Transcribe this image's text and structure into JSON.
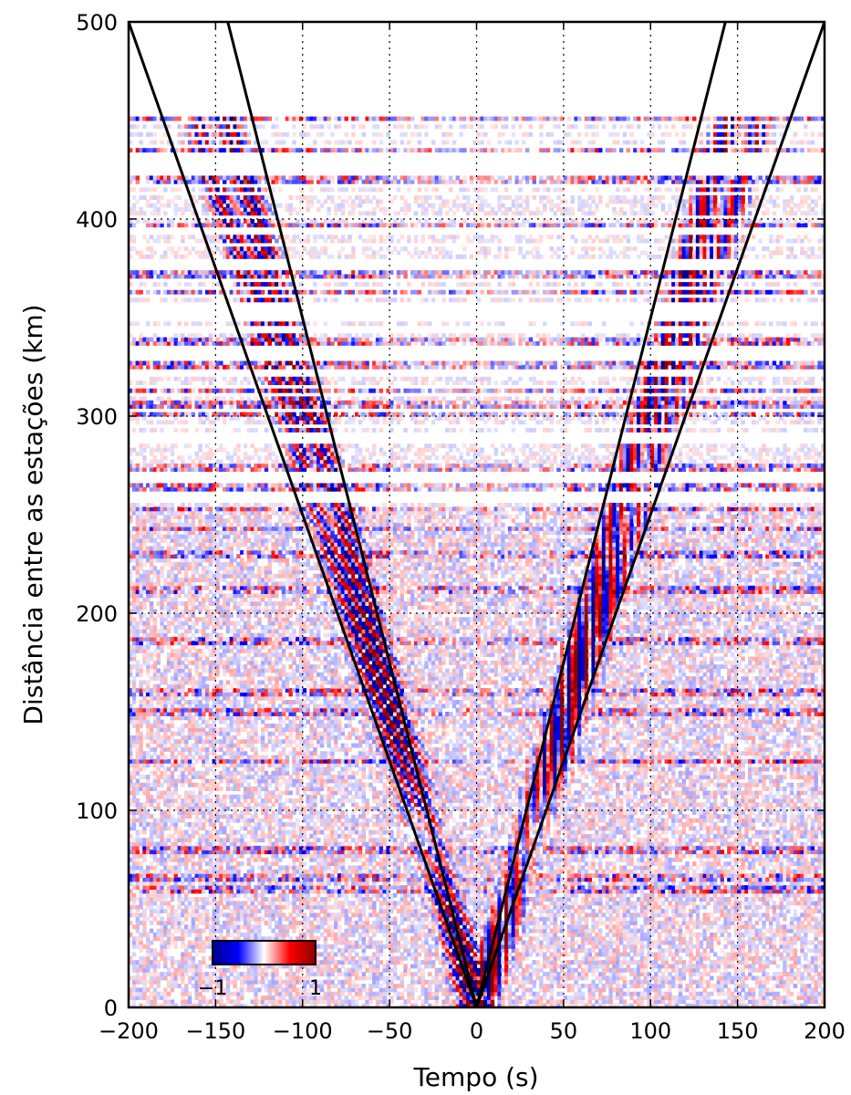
{
  "chart_data": {
    "type": "heatmap",
    "xlabel": "Tempo (s)",
    "ylabel": "Distância entre as estações (km)",
    "xlim": [
      -200,
      200
    ],
    "ylim": [
      0,
      500
    ],
    "x_ticks": [
      -200,
      -150,
      -100,
      -50,
      0,
      50,
      100,
      150,
      200
    ],
    "y_ticks": [
      0,
      100,
      200,
      300,
      400,
      500
    ],
    "x_tick_labels": [
      "−200",
      "−150",
      "−100",
      "−50",
      "0",
      "50",
      "100",
      "150",
      "200"
    ],
    "y_tick_labels": [
      "0",
      "100",
      "200",
      "300",
      "400",
      "500"
    ],
    "grid": true,
    "grid_style": "dotted",
    "colormap": [
      "#00008b",
      "#0000ff",
      "#ffffff",
      "#ff0000",
      "#8b0000"
    ],
    "colorbar": {
      "min": -1,
      "max": 1,
      "min_label": "−1",
      "max_label": "1",
      "placement": "bottom-left inset"
    },
    "moveout_lines": [
      {
        "points": [
          [
            0,
            0
          ],
          [
            -200,
            500
          ]
        ]
      },
      {
        "points": [
          [
            0,
            0
          ],
          [
            -143,
            500
          ]
        ]
      },
      {
        "points": [
          [
            0,
            0
          ],
          [
            143,
            500
          ]
        ]
      },
      {
        "points": [
          [
            0,
            0
          ],
          [
            200,
            500
          ]
        ]
      }
    ],
    "arrival_bands": [
      {
        "slowness_s_per_km": 0.32,
        "amplitude": 1.0
      },
      {
        "slowness_s_per_km": 0.36,
        "amplitude": 0.8
      }
    ],
    "strong_traces_km": [
      451,
      435,
      420,
      397,
      372,
      363,
      338,
      326,
      313,
      306,
      301,
      274,
      264,
      253,
      243,
      230,
      212,
      186,
      160,
      150,
      125,
      80,
      66,
      60
    ],
    "color_line_color": "#000000"
  }
}
